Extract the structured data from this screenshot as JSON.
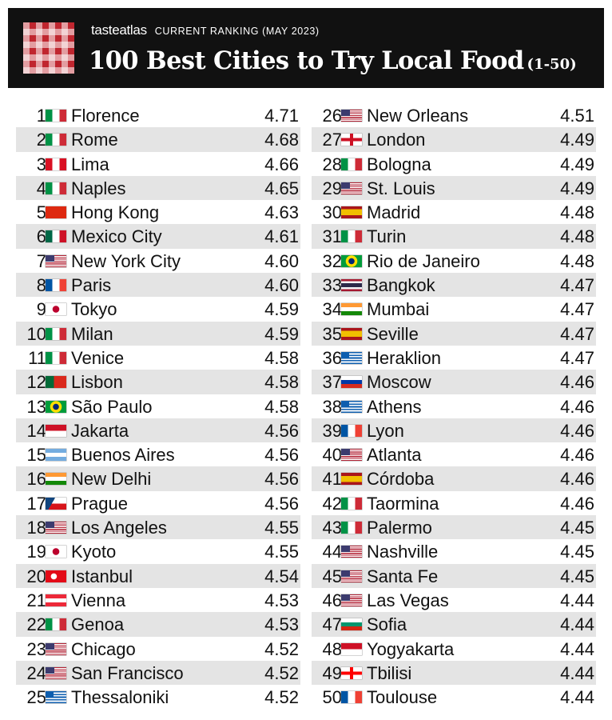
{
  "header": {
    "brand": "tasteatlas",
    "subtitle": "CURRENT RANKING (MAY 2023)",
    "title": "100 Best Cities to Try Local Food",
    "title_range": "(1-50)",
    "logo_icon": "red-checkered-tablecloth-icon"
  },
  "colors": {
    "header_bg": "#111111",
    "stripe": "#e4e4e4",
    "text": "#111111"
  },
  "rows": [
    {
      "rank": "1",
      "city": "Florence",
      "score": "4.71",
      "flag": "it",
      "flag_icon": "italy-flag-icon"
    },
    {
      "rank": "2",
      "city": "Rome",
      "score": "4.68",
      "flag": "it",
      "flag_icon": "italy-flag-icon"
    },
    {
      "rank": "3",
      "city": "Lima",
      "score": "4.66",
      "flag": "pe",
      "flag_icon": "peru-flag-icon"
    },
    {
      "rank": "4",
      "city": "Naples",
      "score": "4.65",
      "flag": "it",
      "flag_icon": "italy-flag-icon"
    },
    {
      "rank": "5",
      "city": "Hong Kong",
      "score": "4.63",
      "flag": "cn",
      "flag_icon": "china-flag-icon"
    },
    {
      "rank": "6",
      "city": "Mexico City",
      "score": "4.61",
      "flag": "mx",
      "flag_icon": "mexico-flag-icon"
    },
    {
      "rank": "7",
      "city": "New York City",
      "score": "4.60",
      "flag": "us",
      "flag_icon": "usa-flag-icon"
    },
    {
      "rank": "8",
      "city": "Paris",
      "score": "4.60",
      "flag": "fr",
      "flag_icon": "france-flag-icon"
    },
    {
      "rank": "9",
      "city": "Tokyo",
      "score": "4.59",
      "flag": "jp",
      "flag_icon": "japan-flag-icon"
    },
    {
      "rank": "10",
      "city": "Milan",
      "score": "4.59",
      "flag": "it",
      "flag_icon": "italy-flag-icon"
    },
    {
      "rank": "11",
      "city": "Venice",
      "score": "4.58",
      "flag": "it",
      "flag_icon": "italy-flag-icon"
    },
    {
      "rank": "12",
      "city": "Lisbon",
      "score": "4.58",
      "flag": "pt",
      "flag_icon": "portugal-flag-icon"
    },
    {
      "rank": "13",
      "city": "São Paulo",
      "score": "4.58",
      "flag": "br",
      "flag_icon": "brazil-flag-icon"
    },
    {
      "rank": "14",
      "city": "Jakarta",
      "score": "4.56",
      "flag": "id",
      "flag_icon": "indonesia-flag-icon"
    },
    {
      "rank": "15",
      "city": "Buenos Aires",
      "score": "4.56",
      "flag": "ar",
      "flag_icon": "argentina-flag-icon"
    },
    {
      "rank": "16",
      "city": "New Delhi",
      "score": "4.56",
      "flag": "in",
      "flag_icon": "india-flag-icon"
    },
    {
      "rank": "17",
      "city": "Prague",
      "score": "4.56",
      "flag": "cz",
      "flag_icon": "czechia-flag-icon"
    },
    {
      "rank": "18",
      "city": "Los Angeles",
      "score": "4.55",
      "flag": "us",
      "flag_icon": "usa-flag-icon"
    },
    {
      "rank": "19",
      "city": "Kyoto",
      "score": "4.55",
      "flag": "jp",
      "flag_icon": "japan-flag-icon"
    },
    {
      "rank": "20",
      "city": "Istanbul",
      "score": "4.54",
      "flag": "tr",
      "flag_icon": "turkey-flag-icon"
    },
    {
      "rank": "21",
      "city": "Vienna",
      "score": "4.53",
      "flag": "at",
      "flag_icon": "austria-flag-icon"
    },
    {
      "rank": "22",
      "city": "Genoa",
      "score": "4.53",
      "flag": "it",
      "flag_icon": "italy-flag-icon"
    },
    {
      "rank": "23",
      "city": "Chicago",
      "score": "4.52",
      "flag": "us",
      "flag_icon": "usa-flag-icon"
    },
    {
      "rank": "24",
      "city": "San Francisco",
      "score": "4.52",
      "flag": "us",
      "flag_icon": "usa-flag-icon"
    },
    {
      "rank": "25",
      "city": "Thessaloniki",
      "score": "4.52",
      "flag": "gr",
      "flag_icon": "greece-flag-icon"
    },
    {
      "rank": "26",
      "city": "New Orleans",
      "score": "4.51",
      "flag": "us",
      "flag_icon": "usa-flag-icon"
    },
    {
      "rank": "27",
      "city": "London",
      "score": "4.49",
      "flag": "en",
      "flag_icon": "england-flag-icon"
    },
    {
      "rank": "28",
      "city": "Bologna",
      "score": "4.49",
      "flag": "it",
      "flag_icon": "italy-flag-icon"
    },
    {
      "rank": "29",
      "city": "St. Louis",
      "score": "4.49",
      "flag": "us",
      "flag_icon": "usa-flag-icon"
    },
    {
      "rank": "30",
      "city": "Madrid",
      "score": "4.48",
      "flag": "es",
      "flag_icon": "spain-flag-icon"
    },
    {
      "rank": "31",
      "city": "Turin",
      "score": "4.48",
      "flag": "it",
      "flag_icon": "italy-flag-icon"
    },
    {
      "rank": "32",
      "city": "Rio de Janeiro",
      "score": "4.48",
      "flag": "br",
      "flag_icon": "brazil-flag-icon"
    },
    {
      "rank": "33",
      "city": "Bangkok",
      "score": "4.47",
      "flag": "th",
      "flag_icon": "thailand-flag-icon"
    },
    {
      "rank": "34",
      "city": "Mumbai",
      "score": "4.47",
      "flag": "in",
      "flag_icon": "india-flag-icon"
    },
    {
      "rank": "35",
      "city": "Seville",
      "score": "4.47",
      "flag": "es",
      "flag_icon": "spain-flag-icon"
    },
    {
      "rank": "36",
      "city": "Heraklion",
      "score": "4.47",
      "flag": "gr",
      "flag_icon": "greece-flag-icon"
    },
    {
      "rank": "37",
      "city": "Moscow",
      "score": "4.46",
      "flag": "ru",
      "flag_icon": "russia-flag-icon"
    },
    {
      "rank": "38",
      "city": "Athens",
      "score": "4.46",
      "flag": "gr",
      "flag_icon": "greece-flag-icon"
    },
    {
      "rank": "39",
      "city": "Lyon",
      "score": "4.46",
      "flag": "fr",
      "flag_icon": "france-flag-icon"
    },
    {
      "rank": "40",
      "city": "Atlanta",
      "score": "4.46",
      "flag": "us",
      "flag_icon": "usa-flag-icon"
    },
    {
      "rank": "41",
      "city": "Córdoba",
      "score": "4.46",
      "flag": "es",
      "flag_icon": "spain-flag-icon"
    },
    {
      "rank": "42",
      "city": "Taormina",
      "score": "4.46",
      "flag": "it",
      "flag_icon": "italy-flag-icon"
    },
    {
      "rank": "43",
      "city": "Palermo",
      "score": "4.45",
      "flag": "it",
      "flag_icon": "italy-flag-icon"
    },
    {
      "rank": "44",
      "city": "Nashville",
      "score": "4.45",
      "flag": "us",
      "flag_icon": "usa-flag-icon"
    },
    {
      "rank": "45",
      "city": "Santa Fe",
      "score": "4.45",
      "flag": "us",
      "flag_icon": "usa-flag-icon"
    },
    {
      "rank": "46",
      "city": "Las Vegas",
      "score": "4.44",
      "flag": "us",
      "flag_icon": "usa-flag-icon"
    },
    {
      "rank": "47",
      "city": "Sofia",
      "score": "4.44",
      "flag": "bg",
      "flag_icon": "bulgaria-flag-icon"
    },
    {
      "rank": "48",
      "city": "Yogyakarta",
      "score": "4.44",
      "flag": "id",
      "flag_icon": "indonesia-flag-icon"
    },
    {
      "rank": "49",
      "city": "Tbilisi",
      "score": "4.44",
      "flag": "ge",
      "flag_icon": "georgia-flag-icon"
    },
    {
      "rank": "50",
      "city": "Toulouse",
      "score": "4.44",
      "flag": "fr",
      "flag_icon": "france-flag-icon"
    }
  ]
}
